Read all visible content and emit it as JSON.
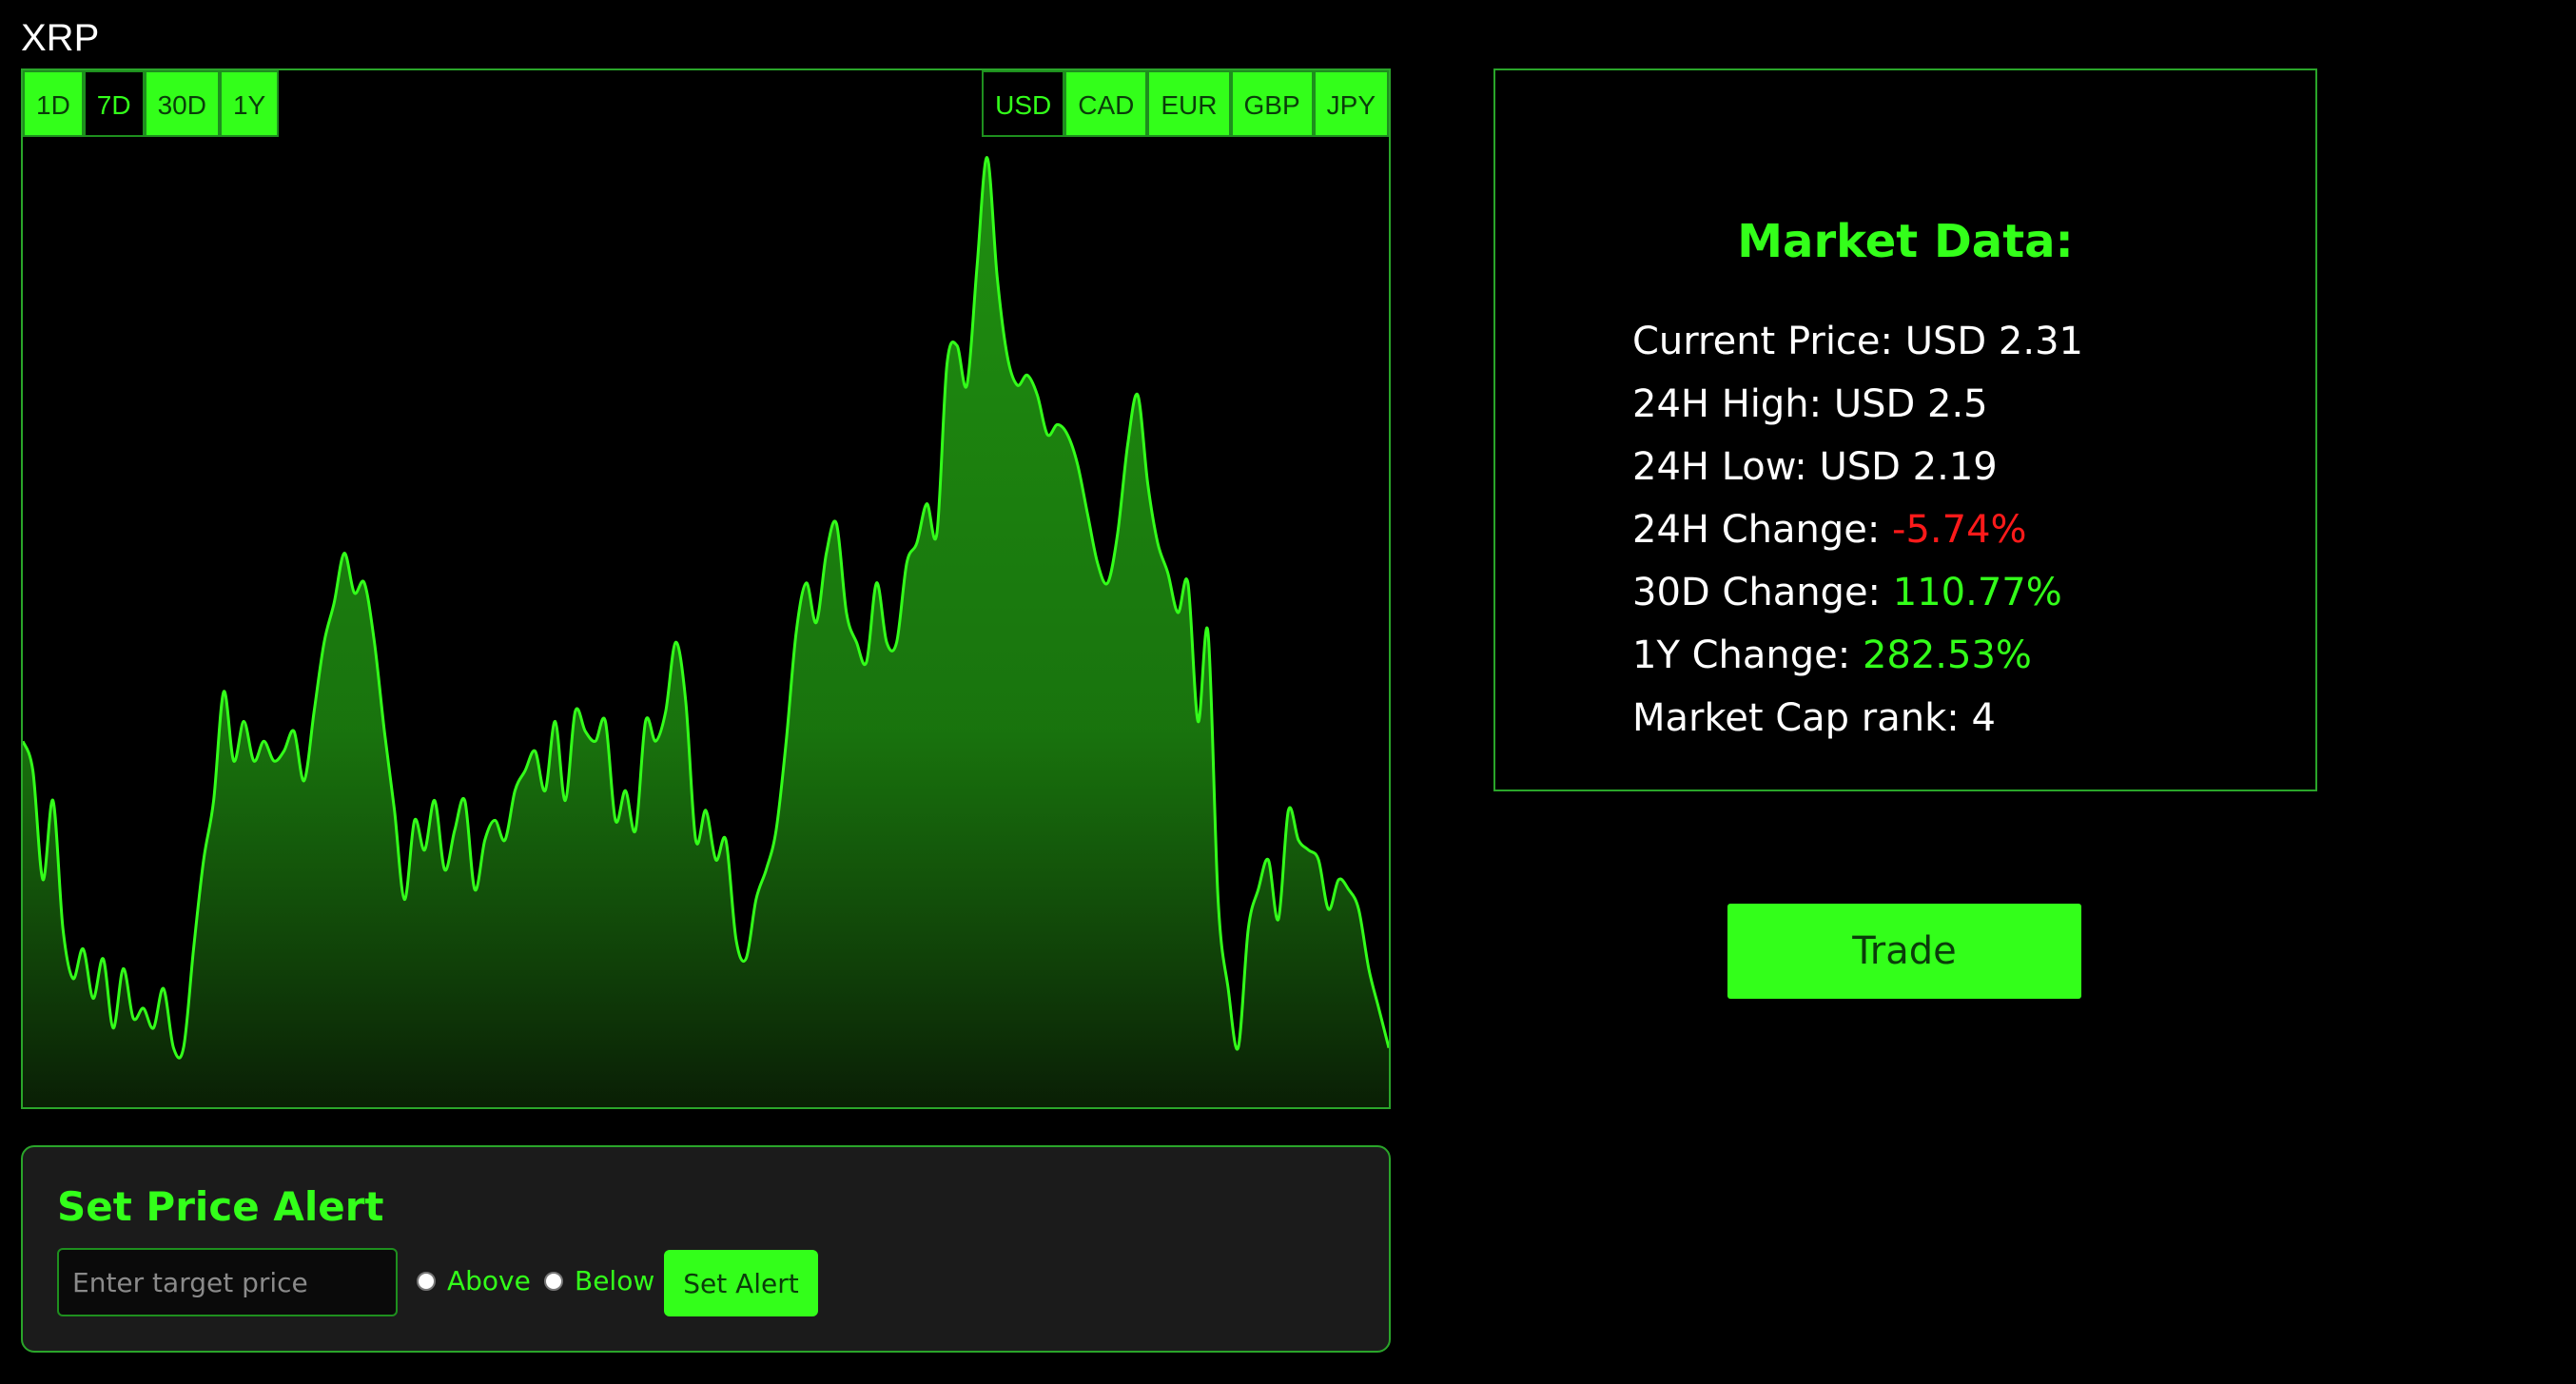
{
  "coin": {
    "name": "XRP"
  },
  "time_ranges": [
    {
      "label": "1D",
      "active": false
    },
    {
      "label": "7D",
      "active": true
    },
    {
      "label": "30D",
      "active": false
    },
    {
      "label": "1Y",
      "active": false
    }
  ],
  "currencies": [
    {
      "label": "USD",
      "active": true
    },
    {
      "label": "CAD",
      "active": false
    },
    {
      "label": "EUR",
      "active": false
    },
    {
      "label": "GBP",
      "active": false
    },
    {
      "label": "JPY",
      "active": false
    }
  ],
  "market": {
    "title": "Market Data:",
    "current_price_label": "Current Price:",
    "current_price_value": "USD 2.31",
    "high_label": "24H High:",
    "high_value": "USD 2.5",
    "low_label": "24H Low:",
    "low_value": "USD 2.19",
    "change_24h_label": "24H Change:",
    "change_24h_value": "-5.74%",
    "change_30d_label": "30D Change:",
    "change_30d_value": "110.77%",
    "change_1y_label": "1Y Change:",
    "change_1y_value": "282.53%",
    "rank_label": "Market Cap rank:",
    "rank_value": "4"
  },
  "trade": {
    "label": "Trade"
  },
  "alert": {
    "title": "Set Price Alert",
    "placeholder": "Enter target price",
    "above_label": "Above",
    "below_label": "Below",
    "button_label": "Set Alert"
  },
  "colors": {
    "accent": "#33ff1a",
    "negative": "#ff1a1a",
    "background": "#000000",
    "panel": "#1b1b1b"
  },
  "chart_data": {
    "type": "area",
    "xlabel": "",
    "ylabel": "",
    "grid": false,
    "legend": "none",
    "ylim": [
      0,
      100
    ],
    "values": [
      37,
      34,
      23,
      31,
      18,
      13,
      16,
      11,
      15,
      8,
      14,
      9,
      10,
      8,
      12,
      6,
      6,
      16,
      25,
      31,
      42,
      35,
      39,
      35,
      37,
      35,
      36,
      38,
      33,
      40,
      47,
      51,
      56,
      52,
      53,
      47,
      38,
      30,
      21,
      29,
      26,
      31,
      24,
      28,
      31,
      22,
      27,
      29,
      27,
      32,
      34,
      36,
      32,
      39,
      31,
      40,
      38,
      37,
      39,
      29,
      32,
      28,
      39,
      37,
      40,
      47,
      41,
      27,
      30,
      25,
      27,
      17,
      15,
      21,
      24,
      28,
      37,
      48,
      53,
      49,
      56,
      59,
      50,
      47,
      45,
      53,
      47,
      47,
      55,
      57,
      61,
      58,
      75,
      77,
      73,
      85,
      96,
      84,
      76,
      73,
      74,
      72,
      68,
      69,
      68,
      65,
      60,
      55,
      53,
      58,
      67,
      72,
      63,
      57,
      54,
      50,
      53,
      39,
      48,
      21,
      12,
      6,
      18,
      22,
      25,
      19,
      30,
      27,
      26,
      25,
      20,
      23,
      22,
      20,
      14,
      10,
      6
    ]
  }
}
